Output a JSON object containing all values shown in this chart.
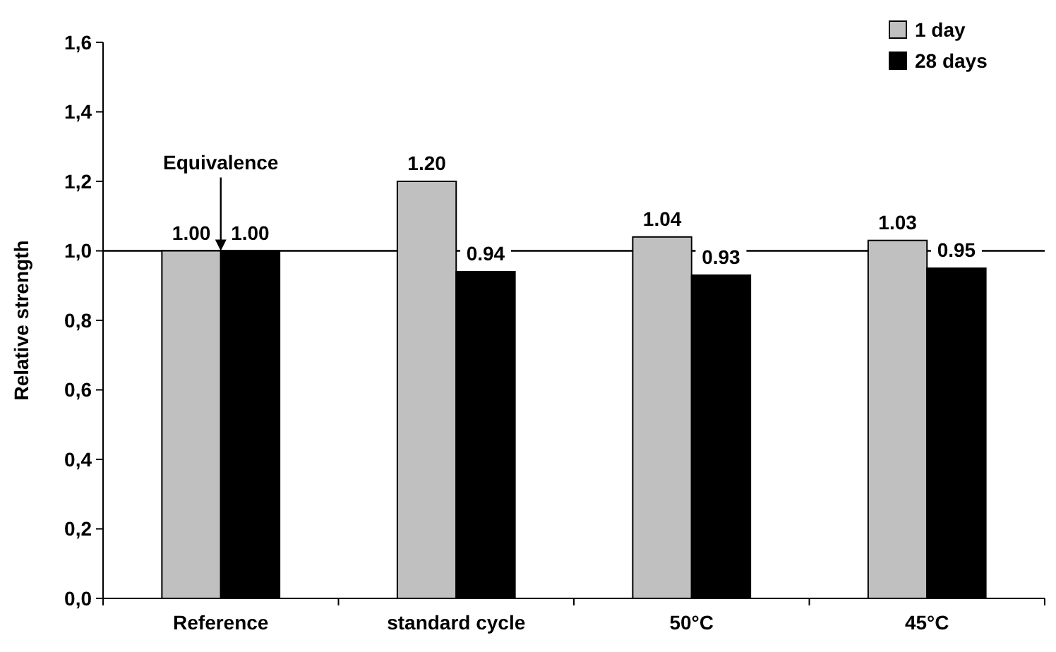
{
  "chart_data": {
    "type": "bar",
    "ylabel": "Relative strength",
    "categories": [
      "Reference",
      "standard cycle",
      "50°C",
      "45°C"
    ],
    "series": [
      {
        "name": "1 day",
        "color": "#c0c0c0",
        "values": [
          1.0,
          1.2,
          1.04,
          1.03
        ],
        "value_labels": [
          "1.00",
          "1.20",
          "1.04",
          "1.03"
        ]
      },
      {
        "name": "28 days",
        "color": "#000000",
        "values": [
          1.0,
          0.94,
          0.93,
          0.95
        ],
        "value_labels": [
          "1.00",
          "0.94",
          "0.93",
          "0.95"
        ]
      }
    ],
    "ylim": [
      0,
      1.6
    ],
    "yticks": [
      {
        "value": 0,
        "label": "0,0"
      },
      {
        "value": 0.2,
        "label": "0,2"
      },
      {
        "value": 0.4,
        "label": "0,4"
      },
      {
        "value": 0.6,
        "label": "0,6"
      },
      {
        "value": 0.8,
        "label": "0,8"
      },
      {
        "value": 1,
        "label": "1,0"
      },
      {
        "value": 1.2,
        "label": "1,2"
      },
      {
        "value": 1.4,
        "label": "1,4"
      },
      {
        "value": 1.6,
        "label": "1,6"
      }
    ],
    "ref_lines": [
      {
        "axis": "y",
        "value": 1,
        "color": "#000000"
      }
    ],
    "annotations": [
      {
        "text": "Equivalence",
        "x": "Reference",
        "y": 1
      }
    ],
    "legend": "top right",
    "grid": false
  }
}
